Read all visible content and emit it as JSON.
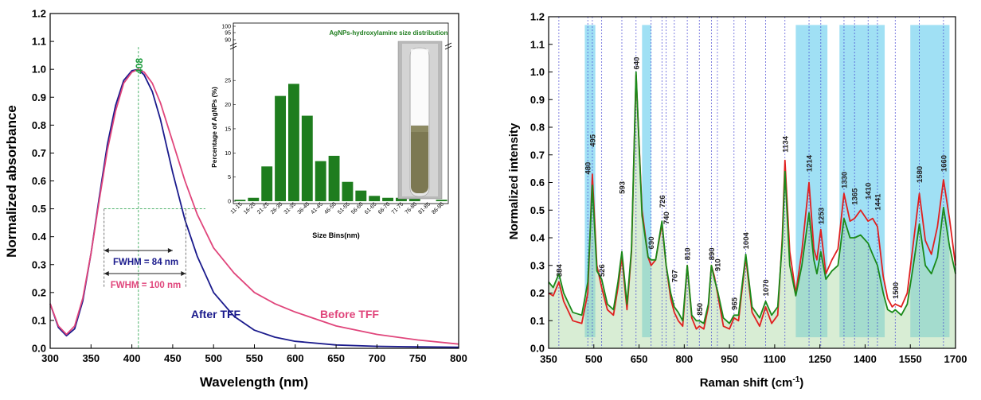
{
  "chart_data": [
    {
      "type": "line",
      "xlabel": "Wavelength (nm)",
      "ylabel": "Normalized absorbance",
      "xlim": [
        300,
        800
      ],
      "ylim": [
        0,
        1.2
      ],
      "xticks": [
        "300",
        "350",
        "400",
        "450",
        "500",
        "550",
        "600",
        "650",
        "700",
        "750",
        "800"
      ],
      "yticks": [
        "0.0",
        "0.1",
        "0.2",
        "0.3",
        "0.4",
        "0.5",
        "0.6",
        "0.7",
        "0.8",
        "0.9",
        "1.0",
        "1.1",
        "1.2"
      ],
      "grid": false,
      "peak_label": "408",
      "peak_x": 408,
      "fwhm_labels": [
        "FWHM = 84 nm",
        "FWHM = 100 nm"
      ],
      "fwhm_ranges": [
        [
          366,
          450
        ],
        [
          366,
          466
        ]
      ],
      "series": [
        {
          "name": "After TFF",
          "color": "#1a1a8c",
          "x": [
            300,
            310,
            320,
            330,
            340,
            350,
            360,
            370,
            380,
            390,
            400,
            408,
            415,
            425,
            435,
            450,
            465,
            480,
            500,
            525,
            550,
            575,
            600,
            650,
            700,
            750,
            800
          ],
          "y": [
            0.16,
            0.075,
            0.045,
            0.07,
            0.17,
            0.34,
            0.54,
            0.73,
            0.87,
            0.96,
            0.995,
            1.0,
            0.98,
            0.92,
            0.82,
            0.63,
            0.46,
            0.33,
            0.2,
            0.115,
            0.065,
            0.04,
            0.025,
            0.012,
            0.007,
            0.005,
            0.004
          ]
        },
        {
          "name": "Before TFF",
          "color": "#e0457b",
          "x": [
            300,
            310,
            320,
            330,
            340,
            350,
            360,
            370,
            380,
            390,
            400,
            408,
            415,
            425,
            435,
            450,
            465,
            480,
            500,
            525,
            550,
            575,
            600,
            650,
            700,
            750,
            800
          ],
          "y": [
            0.16,
            0.08,
            0.05,
            0.08,
            0.18,
            0.34,
            0.53,
            0.71,
            0.85,
            0.95,
            0.99,
            1.0,
            0.99,
            0.95,
            0.88,
            0.74,
            0.6,
            0.48,
            0.36,
            0.27,
            0.2,
            0.16,
            0.13,
            0.08,
            0.05,
            0.03,
            0.015
          ]
        }
      ],
      "inset": {
        "type": "bar",
        "title": "AgNPs-hydroxylamine size distribution",
        "xlabel": "Size Bins(nm)",
        "ylabel": "Percentage of AgNPs (%)",
        "yticks": [
          "0",
          "5",
          "10",
          "15",
          "20",
          "25"
        ],
        "yticks_upper": [
          "90",
          "95",
          "100"
        ],
        "color": "#1e7d1e",
        "categories": [
          "11-15",
          "16-20",
          "21-25",
          "26-30",
          "31-35",
          "36-40",
          "41-45",
          "46-50",
          "51-55",
          "56-60",
          "61-65",
          "66-70",
          "71-75",
          "76-80",
          "81-85",
          "86-90"
        ],
        "values": [
          0.3,
          0.7,
          7.2,
          21.8,
          24.3,
          17.7,
          8.3,
          9.4,
          4.0,
          2.2,
          1.1,
          0.7,
          0.7,
          0.7,
          0.0,
          0.3
        ]
      }
    },
    {
      "type": "line",
      "xlabel": "Raman shift (cm",
      "xlabel_sup": "-1",
      "xlabel_end": ")",
      "ylabel": "Normalized intensity",
      "xlim": [
        350,
        1700
      ],
      "ylim": [
        0,
        1.2
      ],
      "xticks": [
        "350",
        "500",
        "650",
        "800",
        "950",
        "1100",
        "1250",
        "1400",
        "1550",
        "1700"
      ],
      "yticks": [
        "0.0",
        "0.1",
        "0.2",
        "0.3",
        "0.4",
        "0.5",
        "0.6",
        "0.7",
        "0.8",
        "0.9",
        "1.0",
        "1.1",
        "1.2"
      ],
      "grid": false,
      "highlight_bands": [
        [
          470,
          505
        ],
        [
          660,
          690
        ],
        [
          1170,
          1275
        ],
        [
          1315,
          1465
        ],
        [
          1550,
          1680
        ]
      ],
      "peaks": [
        {
          "label": "384",
          "x": 384,
          "y": 0.25
        },
        {
          "label": "480",
          "x": 480,
          "y": 0.62
        },
        {
          "label": "495",
          "x": 495,
          "y": 0.72
        },
        {
          "label": "526",
          "x": 526,
          "y": 0.25
        },
        {
          "label": "593",
          "x": 593,
          "y": 0.55
        },
        {
          "label": "640",
          "x": 640,
          "y": 1.0
        },
        {
          "label": "690",
          "x": 690,
          "y": 0.35
        },
        {
          "label": "726",
          "x": 726,
          "y": 0.5
        },
        {
          "label": "740",
          "x": 740,
          "y": 0.44
        },
        {
          "label": "767",
          "x": 767,
          "y": 0.23
        },
        {
          "label": "810",
          "x": 810,
          "y": 0.31
        },
        {
          "label": "850",
          "x": 850,
          "y": 0.11
        },
        {
          "label": "890",
          "x": 890,
          "y": 0.31
        },
        {
          "label": "910",
          "x": 910,
          "y": 0.27
        },
        {
          "label": "965",
          "x": 965,
          "y": 0.13
        },
        {
          "label": "1004",
          "x": 1004,
          "y": 0.35
        },
        {
          "label": "1070",
          "x": 1070,
          "y": 0.18
        },
        {
          "label": "1134",
          "x": 1134,
          "y": 0.7
        },
        {
          "label": "1214",
          "x": 1214,
          "y": 0.63
        },
        {
          "label": "1253",
          "x": 1253,
          "y": 0.44
        },
        {
          "label": "1330",
          "x": 1330,
          "y": 0.57
        },
        {
          "label": "1365",
          "x": 1365,
          "y": 0.51
        },
        {
          "label": "1410",
          "x": 1410,
          "y": 0.53
        },
        {
          "label": "1441",
          "x": 1441,
          "y": 0.49
        },
        {
          "label": "1500",
          "x": 1500,
          "y": 0.17
        },
        {
          "label": "1580",
          "x": 1580,
          "y": 0.59
        },
        {
          "label": "1660",
          "x": 1660,
          "y": 0.63
        }
      ],
      "series": [
        {
          "color": "#e02020",
          "x": [
            350,
            365,
            384,
            400,
            430,
            460,
            480,
            495,
            510,
            526,
            545,
            565,
            580,
            593,
            610,
            625,
            640,
            660,
            680,
            690,
            705,
            726,
            740,
            755,
            767,
            780,
            795,
            810,
            825,
            840,
            850,
            865,
            880,
            890,
            900,
            910,
            930,
            950,
            965,
            980,
            1004,
            1025,
            1050,
            1070,
            1090,
            1110,
            1125,
            1134,
            1150,
            1170,
            1190,
            1214,
            1230,
            1240,
            1253,
            1270,
            1290,
            1310,
            1330,
            1350,
            1365,
            1385,
            1410,
            1425,
            1441,
            1460,
            1475,
            1490,
            1500,
            1520,
            1540,
            1560,
            1580,
            1600,
            1620,
            1640,
            1660,
            1680,
            1700
          ],
          "y": [
            0.2,
            0.19,
            0.24,
            0.17,
            0.1,
            0.09,
            0.2,
            0.63,
            0.3,
            0.22,
            0.14,
            0.12,
            0.22,
            0.33,
            0.14,
            0.35,
            0.99,
            0.5,
            0.33,
            0.3,
            0.32,
            0.45,
            0.3,
            0.18,
            0.13,
            0.1,
            0.08,
            0.3,
            0.11,
            0.07,
            0.08,
            0.07,
            0.15,
            0.3,
            0.26,
            0.2,
            0.08,
            0.07,
            0.11,
            0.1,
            0.33,
            0.13,
            0.08,
            0.15,
            0.09,
            0.12,
            0.4,
            0.68,
            0.35,
            0.2,
            0.35,
            0.6,
            0.36,
            0.32,
            0.43,
            0.27,
            0.32,
            0.36,
            0.56,
            0.46,
            0.47,
            0.5,
            0.46,
            0.47,
            0.44,
            0.26,
            0.18,
            0.15,
            0.16,
            0.15,
            0.2,
            0.38,
            0.56,
            0.39,
            0.34,
            0.44,
            0.61,
            0.47,
            0.3
          ]
        },
        {
          "color": "#1a8a1a",
          "x": [
            350,
            365,
            384,
            400,
            430,
            460,
            480,
            495,
            510,
            526,
            545,
            565,
            580,
            593,
            610,
            625,
            640,
            660,
            680,
            690,
            705,
            726,
            740,
            755,
            767,
            780,
            795,
            810,
            825,
            840,
            850,
            865,
            880,
            890,
            900,
            910,
            930,
            950,
            965,
            980,
            1004,
            1025,
            1050,
            1070,
            1090,
            1110,
            1125,
            1134,
            1150,
            1170,
            1190,
            1214,
            1230,
            1240,
            1253,
            1270,
            1290,
            1310,
            1330,
            1350,
            1365,
            1385,
            1410,
            1425,
            1441,
            1460,
            1475,
            1490,
            1500,
            1520,
            1540,
            1560,
            1580,
            1600,
            1620,
            1640,
            1660,
            1680,
            1700
          ],
          "y": [
            0.24,
            0.22,
            0.27,
            0.2,
            0.13,
            0.12,
            0.24,
            0.59,
            0.28,
            0.25,
            0.16,
            0.14,
            0.24,
            0.35,
            0.16,
            0.36,
            1.0,
            0.48,
            0.33,
            0.32,
            0.32,
            0.46,
            0.3,
            0.2,
            0.15,
            0.13,
            0.1,
            0.3,
            0.12,
            0.1,
            0.1,
            0.09,
            0.16,
            0.3,
            0.25,
            0.21,
            0.11,
            0.09,
            0.12,
            0.12,
            0.34,
            0.15,
            0.11,
            0.17,
            0.12,
            0.15,
            0.38,
            0.64,
            0.3,
            0.19,
            0.3,
            0.49,
            0.32,
            0.27,
            0.35,
            0.25,
            0.28,
            0.3,
            0.47,
            0.4,
            0.4,
            0.41,
            0.38,
            0.34,
            0.3,
            0.2,
            0.14,
            0.13,
            0.14,
            0.12,
            0.16,
            0.3,
            0.45,
            0.3,
            0.27,
            0.33,
            0.51,
            0.37,
            0.27
          ]
        }
      ]
    }
  ]
}
